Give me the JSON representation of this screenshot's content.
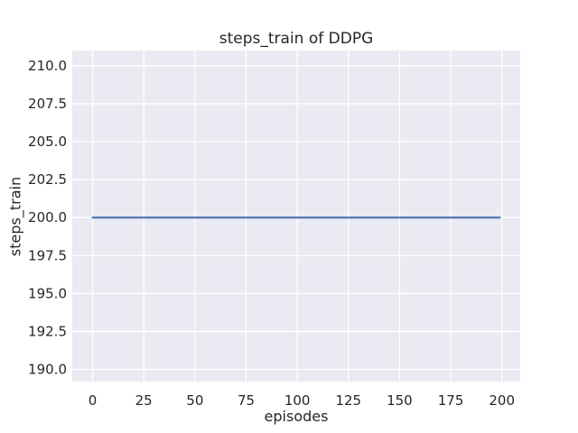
{
  "chart_data": {
    "type": "line",
    "title": "steps_train of DDPG",
    "xlabel": "episodes",
    "ylabel": "steps_train",
    "x": [
      0,
      199
    ],
    "series": [
      {
        "name": "steps_train",
        "y": [
          200,
          200
        ]
      }
    ],
    "xlim": [
      -9.95,
      208.95
    ],
    "ylim": [
      189.2,
      211.0
    ],
    "xticks": [
      0,
      25,
      50,
      75,
      100,
      125,
      150,
      175,
      200
    ],
    "xtick_labels": [
      "0",
      "25",
      "50",
      "75",
      "100",
      "125",
      "150",
      "175",
      "200"
    ],
    "yticks": [
      190,
      192.5,
      195,
      197.5,
      200,
      202.5,
      205,
      207.5,
      210
    ],
    "ytick_labels": [
      "190.0",
      "192.5",
      "195.0",
      "197.5",
      "200.0",
      "202.5",
      "205.0",
      "207.5",
      "210.0"
    ],
    "grid": true,
    "legend": null,
    "colors": {
      "line": "#4C72B0",
      "axes_bg": "#EAEAF2",
      "grid": "#FFFFFF",
      "text": "#262626",
      "figure_bg": "#FFFFFF"
    }
  }
}
